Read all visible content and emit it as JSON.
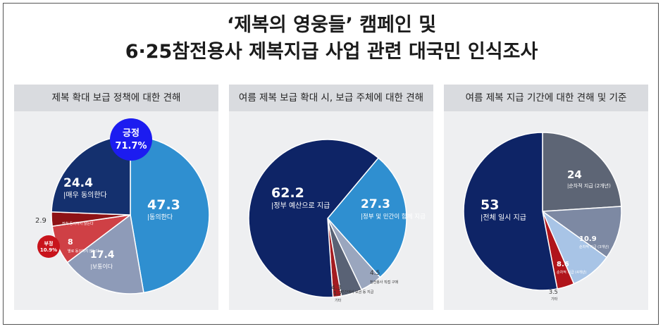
{
  "title": {
    "line1": "‘제복의 영웅들’ 캠페인 및",
    "line2": "6·25참전용사 제복지급 사업 관련 대국민 인식조사"
  },
  "chart_data": [
    {
      "type": "pie",
      "title": "제복 확대 보급 정책에 대한 견해",
      "slices": [
        {
          "label": "동의한다",
          "value": 47.3,
          "color": "#2f8fd0"
        },
        {
          "label": "보통이다",
          "value": 17.4,
          "color": "#8e9bb8"
        },
        {
          "label": "별로 동의하지 않는다",
          "value": 8.0,
          "color": "#cf4045"
        },
        {
          "label": "전혀 동의하지 않는다",
          "value": 2.9,
          "color": "#8e1316"
        },
        {
          "label": "매우 동의한다",
          "value": 24.4,
          "color": "#14306e"
        }
      ],
      "badges": [
        {
          "label": "긍정",
          "value": "71.7%",
          "color": "#1c1cf0"
        },
        {
          "label": "부정",
          "value": "10.9%",
          "color": "#c8141c"
        }
      ]
    },
    {
      "type": "pie",
      "title": "여름 제복 보급 확대 시, 보급 주체에 대한 견해",
      "slices": [
        {
          "label": "정부 및 민간이 함께 지급",
          "value": 27.3,
          "color": "#2f8fd0"
        },
        {
          "label": "참전용사 직접 구매",
          "value": 4.5,
          "color": "#9aa6be"
        },
        {
          "label": "민간에서 모금 등 지급",
          "value": 4.3,
          "color": "#596275"
        },
        {
          "label": "기타",
          "value": 1.7,
          "color": "#a31b20"
        },
        {
          "label": "정부 예산으로 지급",
          "value": 62.2,
          "color": "#0e2466"
        }
      ]
    },
    {
      "type": "pie",
      "title": "여름 제복 지급 기간에 대한 견해 및 기준",
      "slices": [
        {
          "label": "순차적 지급 (2개년)",
          "value": 24.0,
          "color": "#5d6575"
        },
        {
          "label": "순차적 지급 (3개년)",
          "value": 10.9,
          "color": "#7d89a3"
        },
        {
          "label": "순차적 지급 (4개년)",
          "value": 8.6,
          "color": "#a8c4e6"
        },
        {
          "label": "기타",
          "value": 3.5,
          "color": "#b0151b"
        },
        {
          "label": "전체 일시 지급",
          "value": 53.0,
          "color": "#0e2466"
        }
      ]
    }
  ]
}
